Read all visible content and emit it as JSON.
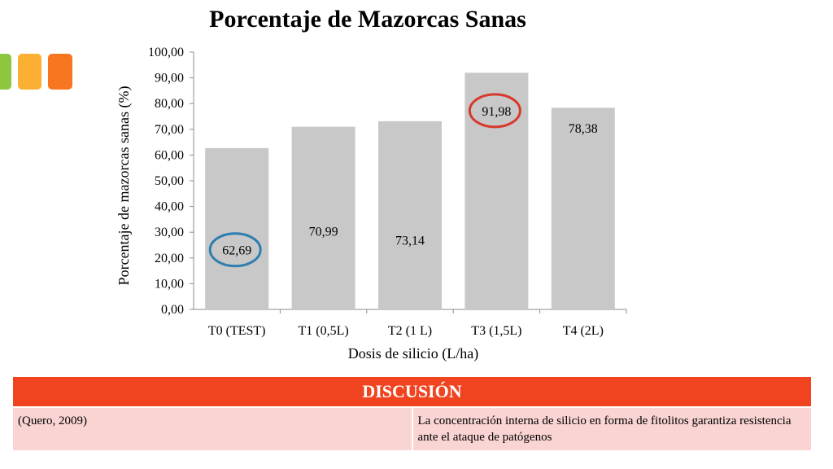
{
  "colors": {
    "bar": "#c8c8c8",
    "highlight_blue": "#2e7fb0",
    "highlight_red": "#d63a2c",
    "header_red": "#f04421",
    "row_pink": "#f9d4d2",
    "deco_green": "#8dc63f",
    "deco_yellow": "#fbb034",
    "deco_orange": "#f7761f"
  },
  "chart_data": {
    "type": "bar",
    "title": "Porcentaje de Mazorcas Sanas",
    "xlabel": "Dosis de silicio (L/ha)",
    "ylabel": "Porcentaje de mazorcas sanas (%)",
    "categories": [
      "T0 (TEST)",
      "T1 (0,5L)",
      "T2 (1 L)",
      "T3 (1,5L)",
      "T4 (2L)"
    ],
    "values": [
      62.69,
      70.99,
      73.14,
      91.98,
      78.38
    ],
    "value_labels": [
      "62,69",
      "70,99",
      "73,14",
      "91,98",
      "78,38"
    ],
    "ylim": [
      0,
      100
    ],
    "yticks": [
      "0,00",
      "10,00",
      "20,00",
      "30,00",
      "40,00",
      "50,00",
      "60,00",
      "70,00",
      "80,00",
      "90,00",
      "100,00"
    ],
    "grid": false,
    "legend": "none",
    "highlighted": [
      {
        "category": "T0 (TEST)",
        "color": "blue"
      },
      {
        "category": "T3 (1,5L)",
        "color": "red"
      }
    ]
  },
  "discussion": {
    "header": "DISCUSIÓN",
    "reference": "(Quero, 2009)",
    "text": "La concentración interna de silicio en forma de fitolitos garantiza resistencia ante el ataque de patógenos"
  }
}
